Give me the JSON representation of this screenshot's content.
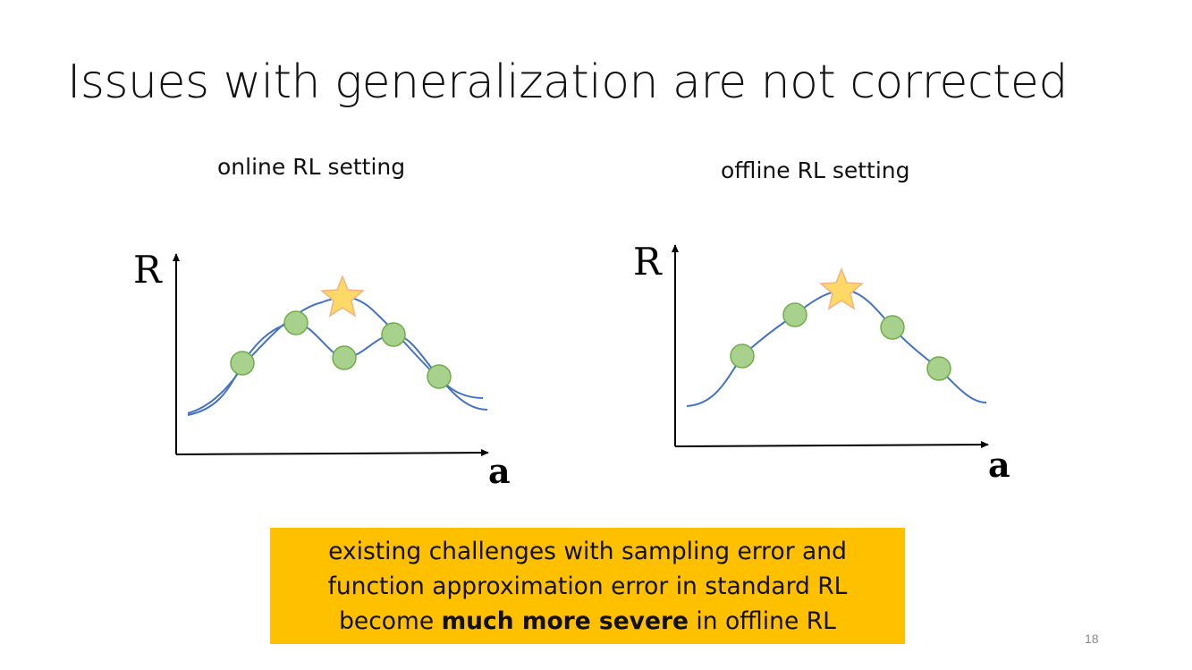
{
  "slide": {
    "title": "Issues with generalization are not corrected",
    "page_number": "18"
  },
  "left_panel": {
    "subtitle": "online RL setting",
    "y_axis_label": "R",
    "x_axis_label": "a"
  },
  "right_panel": {
    "subtitle": "offline RL setting",
    "y_axis_label": "R",
    "x_axis_label": "a"
  },
  "callout": {
    "line1": "existing challenges with sampling error and",
    "line2": "function approximation error in standard RL",
    "line3_prefix": "become ",
    "line3_bold": "much more severe",
    "line3_suffix": " in offline RL"
  },
  "colors": {
    "curve": "#4472C4",
    "sample_point_fill": "#A9D18E",
    "sample_point_stroke": "#70AD47",
    "star_fill": "#FFD966",
    "star_stroke": "#F4B183",
    "callout_background": "#FFC000"
  }
}
